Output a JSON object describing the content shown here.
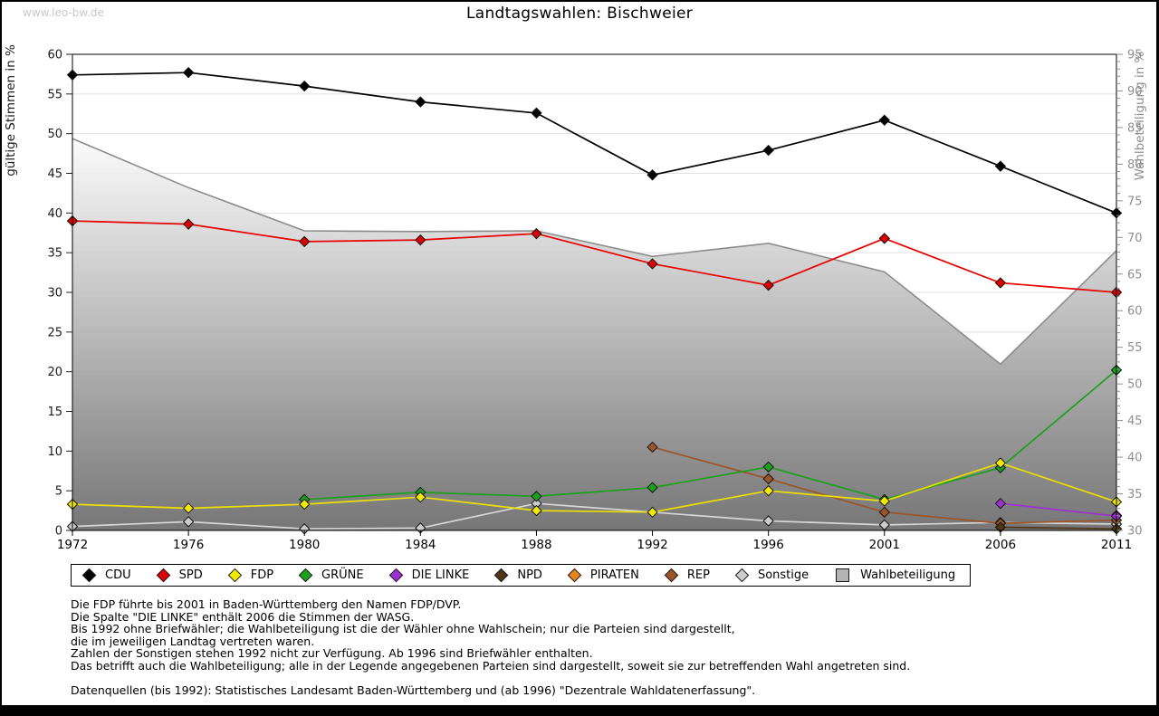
{
  "page": {
    "watermark": "www.leo-bw.de",
    "title": "Landtagswahlen: Bischweier"
  },
  "chart_data": {
    "type": "line",
    "title": "Landtagswahlen: Bischweier",
    "x": [
      1972,
      1976,
      1980,
      1984,
      1988,
      1992,
      1996,
      2001,
      2006,
      2011
    ],
    "x_spacing": "equal",
    "grid": true,
    "legend_position": "bottom",
    "left_axis": {
      "label": "gültige Stimmen in %",
      "min": 0,
      "max": 60,
      "tick_step": 5
    },
    "right_axis": {
      "label": "Wahlbeteiligung in %",
      "min": 30,
      "max": 95,
      "tick_step": 5,
      "minor_step": 1
    },
    "series": [
      {
        "name": "CDU",
        "axis": "left",
        "type": "line",
        "color": "#000000",
        "marker_fill": "#000000",
        "values": [
          57.4,
          57.7,
          56.0,
          54.0,
          52.6,
          44.8,
          47.9,
          51.7,
          45.9,
          40.0
        ]
      },
      {
        "name": "SPD",
        "axis": "left",
        "type": "line",
        "color": "#e80000",
        "marker_fill": "#dd0000",
        "values": [
          39.0,
          38.6,
          36.4,
          36.6,
          37.4,
          33.6,
          30.9,
          36.8,
          31.2,
          30.0
        ]
      },
      {
        "name": "FDP",
        "axis": "left",
        "type": "line",
        "color": "#ede000",
        "marker_fill": "#f4ea00",
        "values": [
          3.3,
          2.8,
          3.3,
          4.2,
          2.5,
          2.3,
          5.0,
          3.7,
          8.5,
          3.6
        ]
      },
      {
        "name": "GRÜNE",
        "axis": "left",
        "type": "line",
        "color": "#1aa11a",
        "marker_fill": "#1aa11a",
        "values": [
          null,
          null,
          3.9,
          4.8,
          4.3,
          5.4,
          8.0,
          3.9,
          7.9,
          20.2
        ]
      },
      {
        "name": "DIE LINKE",
        "axis": "left",
        "type": "line",
        "color": "#9c30d0",
        "marker_fill": "#9c30d0",
        "values": [
          null,
          null,
          null,
          null,
          null,
          null,
          null,
          null,
          3.4,
          1.8
        ]
      },
      {
        "name": "NPD",
        "axis": "left",
        "type": "line",
        "color": "#4f3617",
        "marker_fill": "#4f3617",
        "values": [
          null,
          null,
          null,
          null,
          null,
          null,
          null,
          null,
          0.4,
          0.2
        ]
      },
      {
        "name": "PIRATEN",
        "axis": "left",
        "type": "line",
        "color": "#e5831c",
        "marker_fill": "#e5831c",
        "values": [
          null,
          null,
          null,
          null,
          null,
          null,
          null,
          null,
          null,
          1.9
        ]
      },
      {
        "name": "REP",
        "axis": "left",
        "type": "line",
        "color": "#9c5526",
        "marker_fill": "#9c5526",
        "values": [
          null,
          null,
          null,
          null,
          null,
          10.5,
          6.5,
          2.3,
          0.9,
          1.3
        ]
      },
      {
        "name": "Sonstige",
        "axis": "left",
        "type": "line",
        "color": "#d6d6d6",
        "marker_fill": "#cccccc",
        "values": [
          0.5,
          1.1,
          0.2,
          0.3,
          3.4,
          null,
          1.2,
          0.7,
          1.0,
          0.8
        ]
      },
      {
        "name": "Wahlbeteiligung",
        "axis": "right",
        "type": "area",
        "color": "#8c8c8c",
        "fill_top": "#fbfbfb",
        "fill_bottom": "#6c6c6c",
        "values": [
          83.5,
          76.8,
          70.9,
          70.8,
          70.9,
          67.4,
          69.2,
          65.3,
          52.7,
          68.2
        ]
      }
    ]
  },
  "footnotes": [
    "Die FDP führte bis 2001 in Baden-Württemberg den Namen FDP/DVP.",
    "Die Spalte \"DIE LINKE\" enthält 2006 die Stimmen der WASG.",
    "Bis 1992 ohne Briefwähler; die Wahlbeteiligung ist die der Wähler ohne Wahlschein; nur die Parteien sind dargestellt,",
    "die im jeweiligen Landtag vertreten waren.",
    "Zahlen der Sonstigen stehen 1992 nicht zur Verfügung. Ab 1996 sind Briefwähler enthalten.",
    "Das betrifft auch die Wahlbeteiligung; alle in der Legende angegebenen Parteien sind dargestellt, soweit sie zur betreffenden Wahl angetreten sind.",
    "",
    "Datenquellen (bis 1992): Statistisches Landesamt Baden-Württemberg und (ab 1996) \"Dezentrale Wahldatenerfassung\"."
  ]
}
